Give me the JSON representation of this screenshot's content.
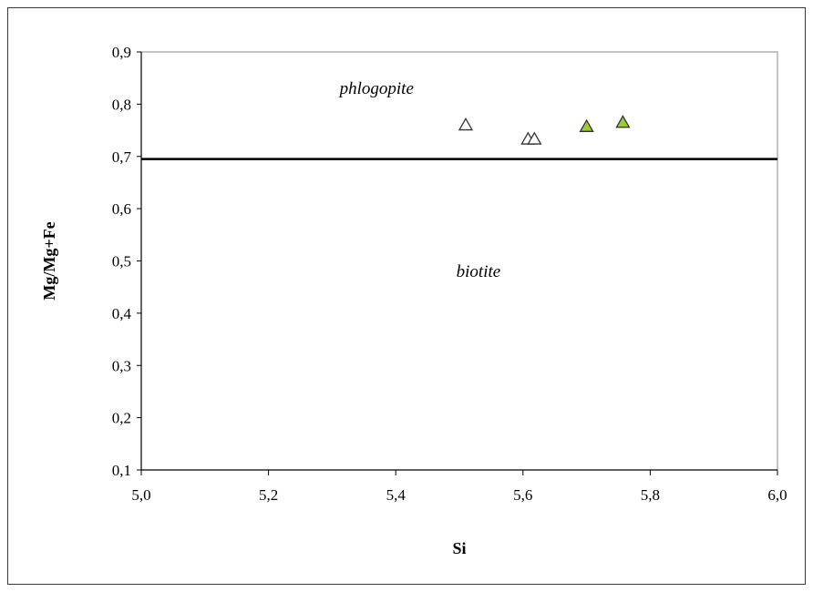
{
  "chart_data": {
    "type": "scatter",
    "xlabel": "Si",
    "ylabel": "Mg/Mg+Fe",
    "xlim": [
      5.0,
      6.0
    ],
    "ylim": [
      0.1,
      0.9
    ],
    "x_ticks": [
      "5,0",
      "5,2",
      "5,4",
      "5,6",
      "5,8",
      "6,0"
    ],
    "x_tick_values": [
      5.0,
      5.2,
      5.4,
      5.6,
      5.8,
      6.0
    ],
    "y_ticks": [
      "0,1",
      "0,2",
      "0,3",
      "0,4",
      "0,5",
      "0,6",
      "0,7",
      "0,8",
      "0,9"
    ],
    "y_tick_values": [
      0.1,
      0.2,
      0.3,
      0.4,
      0.5,
      0.6,
      0.7,
      0.8,
      0.9
    ],
    "grid": false,
    "boundary_line": {
      "y": 0.695
    },
    "region_labels": [
      {
        "text": "phlogopite",
        "x": 5.37,
        "y": 0.83
      },
      {
        "text": "biotite",
        "x": 5.53,
        "y": 0.48
      }
    ],
    "series": [
      {
        "marker": "triangle-open",
        "color": "#ffffff",
        "points": [
          {
            "x": 5.51,
            "y": 0.76
          },
          {
            "x": 5.608,
            "y": 0.733
          },
          {
            "x": 5.618,
            "y": 0.733
          }
        ]
      },
      {
        "marker": "triangle-filled",
        "color": "#9acd32",
        "points": [
          {
            "x": 5.7,
            "y": 0.757
          },
          {
            "x": 5.757,
            "y": 0.765
          }
        ]
      }
    ]
  }
}
